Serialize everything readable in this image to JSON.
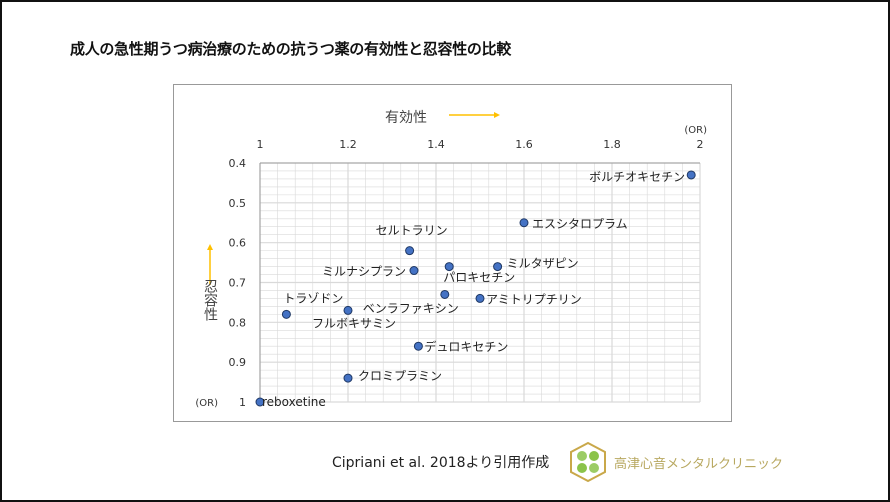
{
  "title": "成人の急性期うつ病治療のための抗うつ薬の有効性と忍容性の比較",
  "citation": "Cipriani et al. 2018より引用作成",
  "clinic_name": "高津心音メンタルクリニック",
  "colors": {
    "point": "#4472c4",
    "point_stroke": "#1f3864",
    "arrow": "#ffc000",
    "grid": "#d9d9d9"
  },
  "chart_data": {
    "type": "scatter",
    "xlabel": "有効性",
    "ylabel": "忍容性",
    "x_unit": "(OR)",
    "y_unit": "(OR)",
    "xlim": [
      1,
      2
    ],
    "ylim": [
      0.4,
      1
    ],
    "y_inverted": true,
    "x_ticks": [
      "1",
      "1.2",
      "1.4",
      "1.6",
      "1.8",
      "2"
    ],
    "y_ticks": [
      "0.4",
      "0.5",
      "0.6",
      "0.7",
      "0.8",
      "0.9",
      "1"
    ],
    "grid": true,
    "points": [
      {
        "label": "ボルチオキセチン",
        "x": 1.98,
        "y": 0.43
      },
      {
        "label": "エスシタロプラム",
        "x": 1.6,
        "y": 0.55
      },
      {
        "label": "セルトラリン",
        "x": 1.34,
        "y": 0.62
      },
      {
        "label": "ミルナシプラン",
        "x": 1.35,
        "y": 0.67
      },
      {
        "label": "パロキセチン",
        "x": 1.43,
        "y": 0.66
      },
      {
        "label": "ミルタザピン",
        "x": 1.54,
        "y": 0.66
      },
      {
        "label": "ベンラファキシン",
        "x": 1.42,
        "y": 0.73
      },
      {
        "label": "アミトリプチリン",
        "x": 1.5,
        "y": 0.74
      },
      {
        "label": "トラゾドン",
        "x": 1.06,
        "y": 0.78
      },
      {
        "label": "フルボキサミン",
        "x": 1.2,
        "y": 0.77
      },
      {
        "label": "デュロキセチン",
        "x": 1.36,
        "y": 0.86
      },
      {
        "label": "クロミプラミン",
        "x": 1.2,
        "y": 0.94
      },
      {
        "label": "reboxetine",
        "x": 1.0,
        "y": 1.0
      }
    ]
  }
}
